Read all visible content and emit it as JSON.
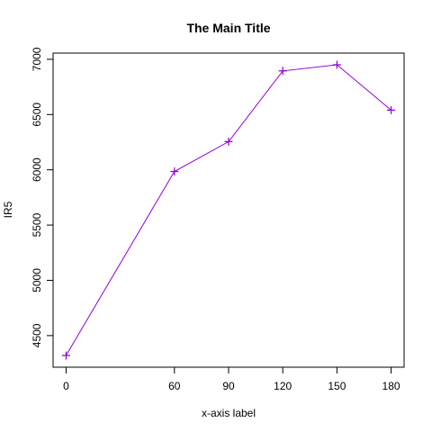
{
  "chart_data": {
    "type": "line",
    "title": "The Main Title",
    "xlabel": "x-axis label",
    "ylabel": "IR5",
    "x": [
      0,
      60,
      90,
      120,
      150,
      180
    ],
    "series": [
      {
        "values": [
          4320,
          5985,
          6255,
          6895,
          6950,
          6540
        ],
        "color": "#9400D3",
        "marker": "plus"
      }
    ],
    "xticks": [
      0,
      60,
      90,
      120,
      150,
      180
    ],
    "xtick_labels": [
      "0",
      "60",
      "90",
      "120",
      "150",
      "180"
    ],
    "yticks": [
      4500,
      5000,
      5500,
      6000,
      6500,
      7000
    ],
    "ytick_labels": [
      "4500",
      "5000",
      "5500",
      "6000",
      "6500",
      "7000"
    ],
    "xlim": [
      -7.2,
      187.2
    ],
    "ylim": [
      4214,
      7056
    ],
    "grid": false,
    "legend": "none",
    "colors": {
      "line": "#9400D3",
      "axis": "#000000"
    }
  }
}
